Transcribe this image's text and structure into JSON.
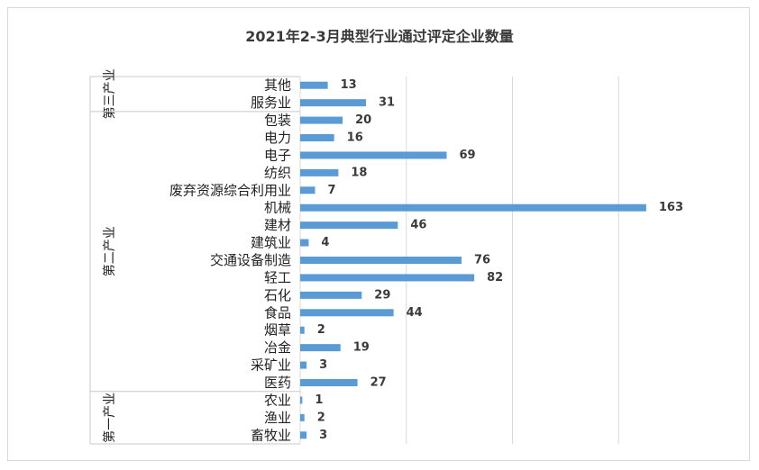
{
  "chart_data": {
    "type": "bar",
    "orientation": "horizontal",
    "title": "2021年2-3月典型行业通过评定企业数量",
    "xlim": [
      0,
      180
    ],
    "grid": true,
    "bar_color": "#5b9bd5",
    "categories": [
      "其他",
      "服务业",
      "包装",
      "电力",
      "电子",
      "纺织",
      "废弃资源综合利用业",
      "机械",
      "建材",
      "建筑业",
      "交通设备制造",
      "轻工",
      "石化",
      "食品",
      "烟草",
      "冶金",
      "采矿业",
      "医药",
      "农业",
      "渔业",
      "畜牧业"
    ],
    "values": [
      13,
      31,
      20,
      16,
      69,
      18,
      7,
      163,
      46,
      4,
      76,
      82,
      29,
      44,
      2,
      19,
      3,
      27,
      1,
      2,
      3
    ],
    "groups": [
      {
        "label": "第三产业",
        "start": 0,
        "count": 2
      },
      {
        "label": "第二产业",
        "start": 2,
        "count": 16
      },
      {
        "label": "第一产业",
        "start": 18,
        "count": 3
      }
    ]
  }
}
